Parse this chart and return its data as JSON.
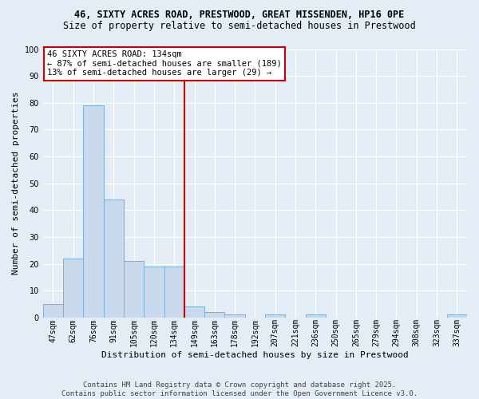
{
  "title1": "46, SIXTY ACRES ROAD, PRESTWOOD, GREAT MISSENDEN, HP16 0PE",
  "title2": "Size of property relative to semi-detached houses in Prestwood",
  "xlabel": "Distribution of semi-detached houses by size in Prestwood",
  "ylabel": "Number of semi-detached properties",
  "categories": [
    "47sqm",
    "62sqm",
    "76sqm",
    "91sqm",
    "105sqm",
    "120sqm",
    "134sqm",
    "149sqm",
    "163sqm",
    "178sqm",
    "192sqm",
    "207sqm",
    "221sqm",
    "236sqm",
    "250sqm",
    "265sqm",
    "279sqm",
    "294sqm",
    "308sqm",
    "323sqm",
    "337sqm"
  ],
  "values": [
    5,
    22,
    79,
    44,
    21,
    19,
    19,
    4,
    2,
    1,
    0,
    1,
    0,
    1,
    0,
    0,
    0,
    0,
    0,
    0,
    1
  ],
  "bar_color": "#c8d8ed",
  "bar_edge_color": "#7aafd4",
  "ref_line_index": 6,
  "ref_line_color": "#cc0000",
  "annotation_title": "46 SIXTY ACRES ROAD: 134sqm",
  "annotation_line1": "← 87% of semi-detached houses are smaller (189)",
  "annotation_line2": "13% of semi-detached houses are larger (29) →",
  "annotation_box_color": "#ffffff",
  "annotation_box_edge": "#cc0000",
  "ylim": [
    0,
    100
  ],
  "yticks": [
    0,
    10,
    20,
    30,
    40,
    50,
    60,
    70,
    80,
    90,
    100
  ],
  "footer1": "Contains HM Land Registry data © Crown copyright and database right 2025.",
  "footer2": "Contains public sector information licensed under the Open Government Licence v3.0.",
  "background_color": "#e4ecf5",
  "plot_bg_color": "#e4ecf5",
  "grid_color": "#ffffff",
  "title_fontsize": 8.5,
  "subtitle_fontsize": 8.5,
  "axis_label_fontsize": 8,
  "tick_fontsize": 7,
  "ann_fontsize": 7.5,
  "footer_fontsize": 6.5
}
